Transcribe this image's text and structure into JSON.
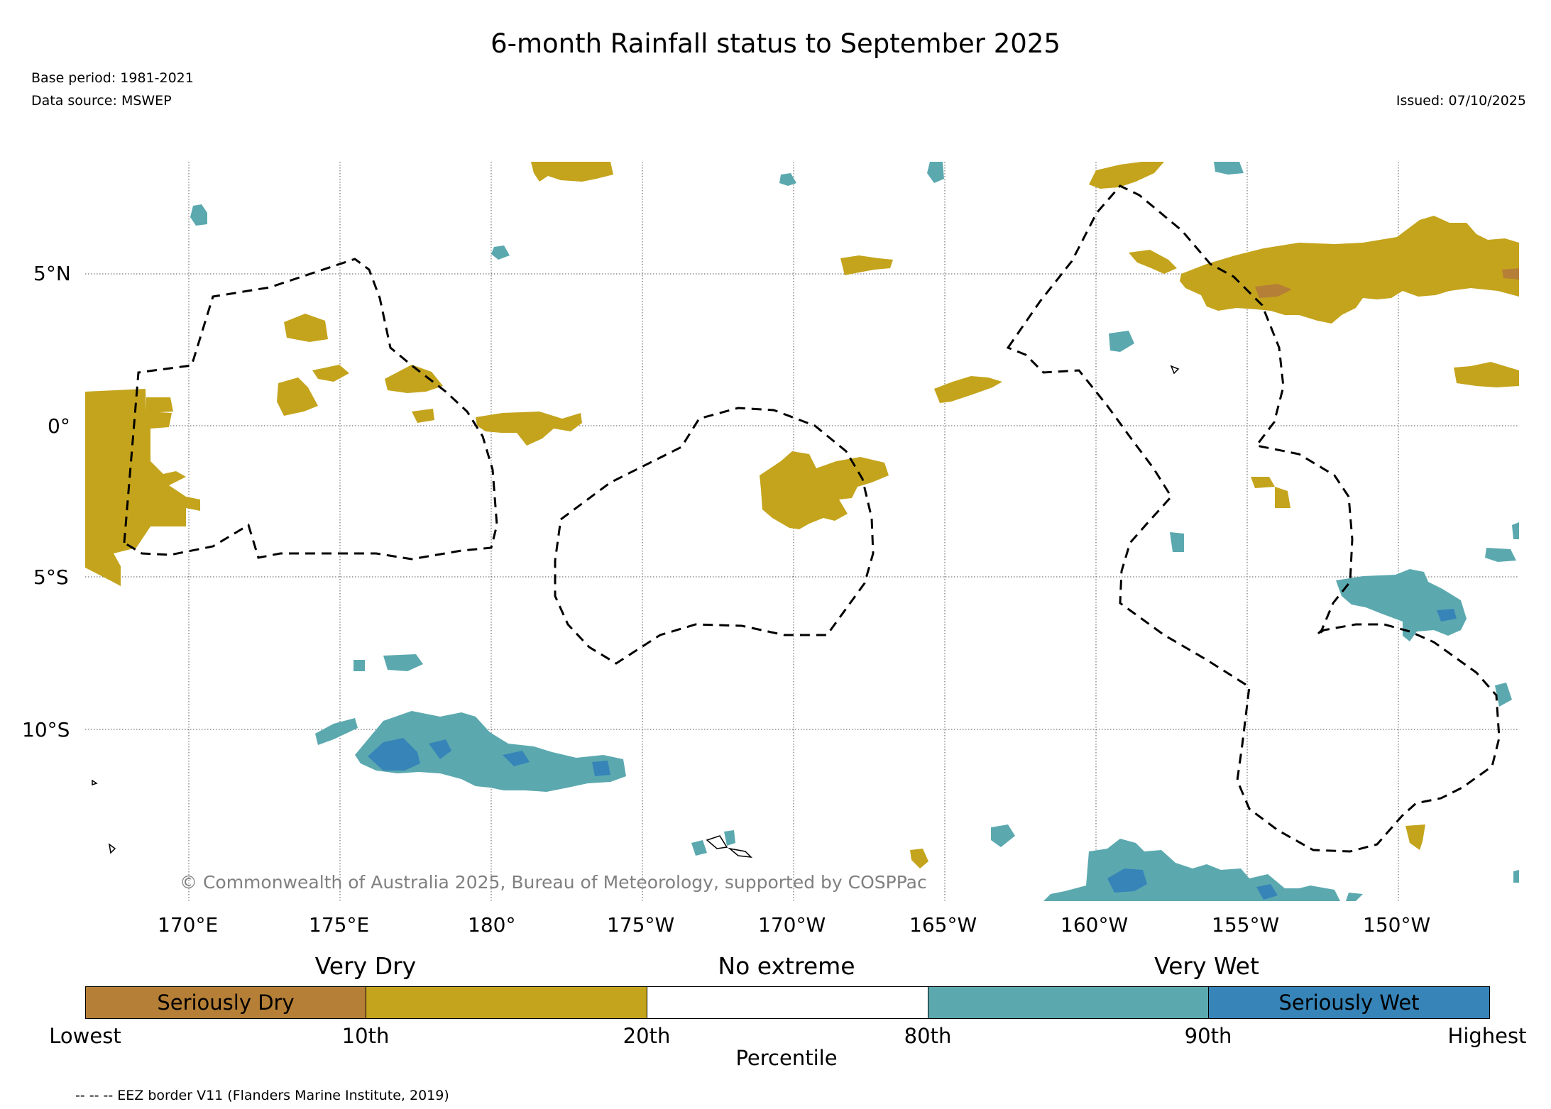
{
  "header": {
    "title": "6-month Rainfall status to September 2025",
    "base_period": "Base period: 1981-2021",
    "data_source": "Data source: MSWEP",
    "issued": "Issued: 07/10/2025"
  },
  "map": {
    "lat_labels": [
      "5°N",
      "0°",
      "5°S",
      "10°S"
    ],
    "lon_labels": [
      "170°E",
      "175°E",
      "180°",
      "175°W",
      "170°W",
      "165°W",
      "160°W",
      "155°W",
      "150°W"
    ],
    "copyright": "© Commonwealth of Australia 2025, Bureau of Meteorology, supported by COSPPac"
  },
  "legend": {
    "categories": {
      "very_dry": "Very Dry",
      "no_extreme": "No extreme",
      "very_wet": "Very Wet"
    },
    "boxes": [
      {
        "label": "Seriously Dry",
        "color": "#b57f37"
      },
      {
        "label": "",
        "color": "#c4a41c"
      },
      {
        "label": "",
        "color": "#ffffff"
      },
      {
        "label": "",
        "color": "#5ba9af"
      },
      {
        "label": "Seriously Wet",
        "color": "#3684b8"
      }
    ],
    "ticks": [
      "Lowest",
      "10th",
      "20th",
      "80th",
      "90th",
      "Highest"
    ],
    "axis_label": "Percentile",
    "eez_note": "-- -- -- EEZ border V11 (Flanders Marine Institute, 2019)"
  },
  "colors": {
    "seriously_dry": "#b57f37",
    "very_dry": "#c4a41c",
    "very_wet": "#5ba9af",
    "seriously_wet": "#3684b8"
  }
}
